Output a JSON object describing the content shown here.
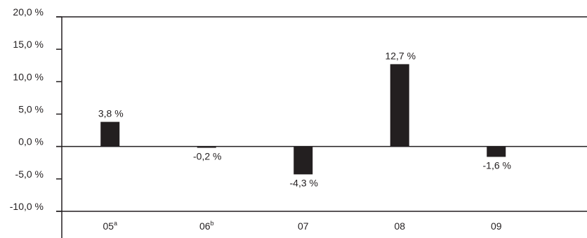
{
  "chart_data": {
    "type": "bar",
    "categories": [
      {
        "label": "05",
        "sup": "a"
      },
      {
        "label": "06",
        "sup": "b"
      },
      {
        "label": "07",
        "sup": ""
      },
      {
        "label": "08",
        "sup": ""
      },
      {
        "label": "09",
        "sup": ""
      }
    ],
    "values": [
      3.8,
      -0.2,
      -4.3,
      12.7,
      -1.6
    ],
    "data_labels": [
      "3,8 %",
      "-0,2 %",
      "-4,3 %",
      "12,7 %",
      "-1,6 %"
    ],
    "y_ticks": [
      {
        "value": 20,
        "label": "20,0 %"
      },
      {
        "value": 15,
        "label": "15,0 %"
      },
      {
        "value": 10,
        "label": "10,0 %"
      },
      {
        "value": 5,
        "label": "5,0 %"
      },
      {
        "value": 0,
        "label": "0,0 %"
      },
      {
        "value": -5,
        "label": "-5,0 %"
      },
      {
        "value": -10,
        "label": "-10,0 %"
      }
    ],
    "ylim": [
      -10,
      20
    ],
    "title": "",
    "xlabel": "",
    "ylabel": "",
    "grid": false,
    "legend": "none",
    "bar_color": "#231f20",
    "axis_color": "#231f20"
  }
}
